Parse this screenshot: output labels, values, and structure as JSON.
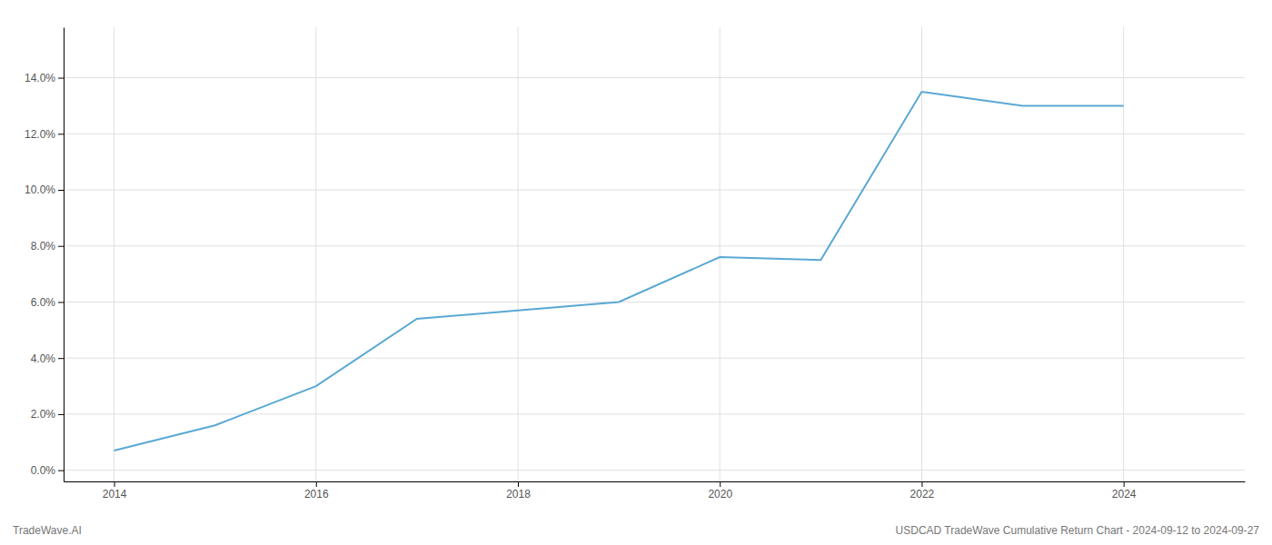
{
  "chart_data": {
    "type": "line",
    "x": [
      2014,
      2015,
      2016,
      2017,
      2018,
      2019,
      2020,
      2021,
      2022,
      2023,
      2024
    ],
    "values": [
      0.007,
      0.016,
      0.03,
      0.054,
      0.057,
      0.06,
      0.076,
      0.075,
      0.135,
      0.13,
      0.13
    ],
    "color": "#5aa8d4",
    "xlim": [
      2013.5,
      2025.2
    ],
    "ylim": [
      -0.004,
      0.158
    ],
    "xticks": [
      2014,
      2016,
      2018,
      2020,
      2022,
      2024
    ],
    "yticks": [
      {
        "value": 0.0,
        "label": "0.0%"
      },
      {
        "value": 0.02,
        "label": "2.0%"
      },
      {
        "value": 0.04,
        "label": "4.0%"
      },
      {
        "value": 0.06,
        "label": "6.0%"
      },
      {
        "value": 0.08,
        "label": "8.0%"
      },
      {
        "value": 0.1,
        "label": "10.0%"
      },
      {
        "value": 0.12,
        "label": "12.0%"
      },
      {
        "value": 0.14,
        "label": "14.0%"
      }
    ],
    "grid": true,
    "annotations": [
      "TradeWave.AI",
      "USDCAD TradeWave Cumulative Return Chart - 2024-09-12 to 2024-09-27"
    ]
  }
}
